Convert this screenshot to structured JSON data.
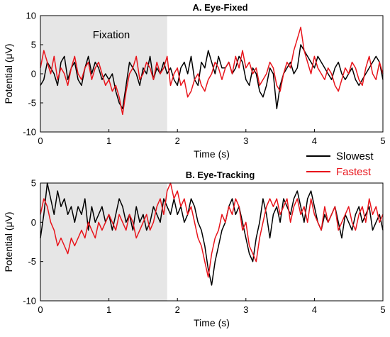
{
  "chart_data": [
    {
      "type": "line",
      "title": "A. Eye-Fixed",
      "xlabel": "Time (s)",
      "ylabel": "Potential (μV)",
      "xlim": [
        0,
        5
      ],
      "ylim": [
        -10,
        10
      ],
      "x_ticks": [
        "0",
        "1",
        "2",
        "3",
        "4",
        "5"
      ],
      "y_ticks": [
        "-10",
        "-5",
        "0",
        "5",
        "10"
      ],
      "shaded_region": {
        "x_range": [
          0,
          1.85
        ],
        "label": "Fixation",
        "color": "#e6e6e6"
      },
      "legend": {
        "placement": "below-right",
        "entries": [
          {
            "label": "Slowest",
            "color": "#000000"
          },
          {
            "label": "Fastest",
            "color": "#e8141b"
          }
        ]
      },
      "series": [
        {
          "name": "Slowest",
          "color": "#000000",
          "x": [
            0,
            0.05,
            0.1,
            0.15,
            0.2,
            0.25,
            0.3,
            0.35,
            0.4,
            0.45,
            0.5,
            0.55,
            0.6,
            0.65,
            0.7,
            0.75,
            0.8,
            0.85,
            0.9,
            0.95,
            1,
            1.05,
            1.1,
            1.15,
            1.2,
            1.25,
            1.3,
            1.35,
            1.4,
            1.45,
            1.5,
            1.55,
            1.6,
            1.65,
            1.7,
            1.75,
            1.8,
            1.85,
            1.9,
            1.95,
            2,
            2.05,
            2.1,
            2.15,
            2.2,
            2.25,
            2.3,
            2.35,
            2.4,
            2.45,
            2.5,
            2.55,
            2.6,
            2.65,
            2.7,
            2.75,
            2.8,
            2.85,
            2.9,
            2.95,
            3,
            3.05,
            3.1,
            3.15,
            3.2,
            3.25,
            3.3,
            3.35,
            3.4,
            3.45,
            3.5,
            3.55,
            3.6,
            3.65,
            3.7,
            3.75,
            3.8,
            3.85,
            3.9,
            3.95,
            4,
            4.05,
            4.1,
            4.15,
            4.2,
            4.25,
            4.3,
            4.35,
            4.4,
            4.45,
            4.5,
            4.55,
            4.6,
            4.65,
            4.7,
            4.75,
            4.8,
            4.85,
            4.9,
            4.95,
            5
          ],
          "y": [
            -2,
            -1,
            2,
            1,
            0,
            -2,
            2,
            3,
            -1,
            1,
            2,
            -1,
            -2,
            1,
            3,
            0,
            2,
            1,
            -1,
            0,
            -1,
            0,
            -3,
            -5,
            -6,
            -2,
            2,
            1,
            0,
            -2,
            1,
            0,
            3,
            -1,
            1,
            0,
            2,
            0,
            1,
            -1,
            -2,
            1,
            2,
            0,
            3,
            -1,
            -2,
            2,
            1,
            4,
            2,
            0,
            3,
            1,
            1,
            2,
            0,
            1,
            3,
            2,
            -1,
            -2,
            1,
            0,
            -3,
            -4,
            -2,
            1,
            0,
            -6,
            -2,
            0,
            1,
            2,
            0,
            1,
            5,
            4,
            3,
            2,
            1,
            3,
            2,
            1,
            0,
            -1,
            1,
            2,
            0,
            -1,
            0,
            1,
            -1,
            -2,
            -1,
            0,
            1,
            2,
            3,
            2,
            -1
          ]
        },
        {
          "name": "Fastest",
          "color": "#e8141b",
          "x": [
            0,
            0.05,
            0.1,
            0.15,
            0.2,
            0.25,
            0.3,
            0.35,
            0.4,
            0.45,
            0.5,
            0.55,
            0.6,
            0.65,
            0.7,
            0.75,
            0.8,
            0.85,
            0.9,
            0.95,
            1,
            1.05,
            1.1,
            1.15,
            1.2,
            1.25,
            1.3,
            1.35,
            1.4,
            1.45,
            1.5,
            1.55,
            1.6,
            1.65,
            1.7,
            1.75,
            1.8,
            1.85,
            1.9,
            1.95,
            2,
            2.05,
            2.1,
            2.15,
            2.2,
            2.25,
            2.3,
            2.35,
            2.4,
            2.45,
            2.5,
            2.55,
            2.6,
            2.65,
            2.7,
            2.75,
            2.8,
            2.85,
            2.9,
            2.95,
            3,
            3.05,
            3.1,
            3.15,
            3.2,
            3.25,
            3.3,
            3.35,
            3.4,
            3.45,
            3.5,
            3.55,
            3.6,
            3.65,
            3.7,
            3.75,
            3.8,
            3.85,
            3.9,
            3.95,
            4,
            4.05,
            4.1,
            4.15,
            4.2,
            4.25,
            4.3,
            4.35,
            4.4,
            4.45,
            4.5,
            4.55,
            4.6,
            4.65,
            4.7,
            4.75,
            4.8,
            4.85,
            4.9,
            4.95,
            5
          ],
          "y": [
            1,
            4,
            2,
            0,
            3,
            -1,
            1,
            0,
            -2,
            1,
            3,
            0,
            -1,
            1,
            2,
            -1,
            1,
            2,
            0,
            -2,
            -1,
            -3,
            -2,
            -4,
            -7,
            -3,
            0,
            1,
            3,
            -1,
            0,
            2,
            1,
            -1,
            2,
            0,
            1,
            3,
            -2,
            0,
            1,
            -2,
            -1,
            -4,
            -3,
            -1,
            0,
            -2,
            -3,
            -1,
            0,
            2,
            1,
            -1,
            1,
            2,
            0,
            3,
            1,
            4,
            1,
            2,
            0,
            1,
            -2,
            -1,
            0,
            2,
            1,
            -2,
            -3,
            0,
            2,
            1,
            4,
            6,
            8,
            4,
            2,
            0,
            3,
            1,
            0,
            -1,
            1,
            0,
            -2,
            -3,
            -1,
            1,
            0,
            2,
            1,
            -1,
            -2,
            1,
            3,
            0,
            -1,
            2,
            0
          ]
        }
      ]
    },
    {
      "type": "line",
      "title": "B. Eye-Tracking",
      "xlabel": "Time (s)",
      "ylabel": "Potential (μV)",
      "xlim": [
        0,
        5
      ],
      "ylim": [
        -10,
        5
      ],
      "x_ticks": [
        "0",
        "1",
        "2",
        "3",
        "4",
        "5"
      ],
      "y_ticks": [
        "-10",
        "-5",
        "0",
        "5"
      ],
      "shaded_region": {
        "x_range": [
          0,
          1.85
        ],
        "color": "#e6e6e6"
      },
      "series": [
        {
          "name": "Slowest",
          "color": "#000000",
          "x": [
            0,
            0.05,
            0.1,
            0.15,
            0.2,
            0.25,
            0.3,
            0.35,
            0.4,
            0.45,
            0.5,
            0.55,
            0.6,
            0.65,
            0.7,
            0.75,
            0.8,
            0.85,
            0.9,
            0.95,
            1,
            1.05,
            1.1,
            1.15,
            1.2,
            1.25,
            1.3,
            1.35,
            1.4,
            1.45,
            1.5,
            1.55,
            1.6,
            1.65,
            1.7,
            1.75,
            1.8,
            1.85,
            1.9,
            1.95,
            2,
            2.05,
            2.1,
            2.15,
            2.2,
            2.25,
            2.3,
            2.35,
            2.4,
            2.45,
            2.5,
            2.55,
            2.6,
            2.65,
            2.7,
            2.75,
            2.8,
            2.85,
            2.9,
            2.95,
            3,
            3.05,
            3.1,
            3.15,
            3.2,
            3.25,
            3.3,
            3.35,
            3.4,
            3.45,
            3.5,
            3.55,
            3.6,
            3.65,
            3.7,
            3.75,
            3.8,
            3.85,
            3.9,
            3.95,
            4,
            4.05,
            4.1,
            4.15,
            4.2,
            4.25,
            4.3,
            4.35,
            4.4,
            4.45,
            4.5,
            4.55,
            4.6,
            4.65,
            4.7,
            4.75,
            4.8,
            4.85,
            4.9,
            4.95,
            5
          ],
          "y": [
            -2,
            1,
            5,
            3,
            1,
            4,
            2,
            3,
            1,
            2,
            0,
            2,
            1,
            3,
            -1,
            2,
            0,
            1,
            2,
            0,
            1,
            -1,
            1,
            3,
            2,
            0,
            1,
            -1,
            2,
            0,
            1,
            -1,
            0,
            2,
            1,
            0,
            3,
            2,
            1,
            3,
            1,
            2,
            0,
            1,
            3,
            2,
            0,
            -1,
            -3,
            -6,
            -8,
            -5,
            -3,
            -1,
            0,
            2,
            3,
            1,
            2,
            0,
            -2,
            -4,
            -5,
            -2,
            0,
            3,
            1,
            -2,
            1,
            2,
            0,
            3,
            2,
            1,
            3,
            4,
            2,
            0,
            3,
            4,
            2,
            0,
            -1,
            1,
            0,
            1,
            2,
            0,
            -2,
            1,
            0,
            -1,
            1,
            2,
            0,
            1,
            2,
            -1,
            0,
            1,
            -1
          ]
        },
        {
          "name": "Fastest",
          "color": "#e8141b",
          "x": [
            0,
            0.05,
            0.1,
            0.15,
            0.2,
            0.25,
            0.3,
            0.35,
            0.4,
            0.45,
            0.5,
            0.55,
            0.6,
            0.65,
            0.7,
            0.75,
            0.8,
            0.85,
            0.9,
            0.95,
            1,
            1.05,
            1.1,
            1.15,
            1.2,
            1.25,
            1.3,
            1.35,
            1.4,
            1.45,
            1.5,
            1.55,
            1.6,
            1.65,
            1.7,
            1.75,
            1.8,
            1.85,
            1.9,
            1.95,
            2,
            2.05,
            2.1,
            2.15,
            2.2,
            2.25,
            2.3,
            2.35,
            2.4,
            2.45,
            2.5,
            2.55,
            2.6,
            2.65,
            2.7,
            2.75,
            2.8,
            2.85,
            2.9,
            2.95,
            3,
            3.05,
            3.1,
            3.15,
            3.2,
            3.25,
            3.3,
            3.35,
            3.4,
            3.45,
            3.5,
            3.55,
            3.6,
            3.65,
            3.7,
            3.75,
            3.8,
            3.85,
            3.9,
            3.95,
            4,
            4.05,
            4.1,
            4.15,
            4.2,
            4.25,
            4.3,
            4.35,
            4.4,
            4.45,
            4.5,
            4.55,
            4.6,
            4.65,
            4.7,
            4.75,
            4.8,
            4.85,
            4.9,
            4.95,
            5
          ],
          "y": [
            1,
            3,
            2,
            0,
            -1,
            -3,
            -2,
            -3,
            -4,
            -2,
            -3,
            -2,
            -1,
            -2,
            0,
            -1,
            -2,
            0,
            -1,
            0,
            1,
            0,
            -1,
            1,
            0,
            -1,
            1,
            0,
            -2,
            -1,
            0,
            1,
            -1,
            0,
            2,
            3,
            1,
            4,
            5,
            3,
            4,
            2,
            3,
            1,
            2,
            0,
            -2,
            -3,
            -5,
            -7,
            -4,
            -2,
            -1,
            1,
            0,
            2,
            1,
            3,
            2,
            -1,
            0,
            -3,
            -4,
            -5,
            -2,
            0,
            2,
            3,
            2,
            3,
            1,
            2,
            3,
            0,
            2,
            3,
            1,
            2,
            0,
            3,
            1,
            0,
            -1,
            2,
            0,
            1,
            2,
            -1,
            0,
            1,
            2,
            0,
            -1,
            1,
            2,
            0,
            3,
            1,
            2,
            0,
            1
          ]
        }
      ]
    }
  ]
}
